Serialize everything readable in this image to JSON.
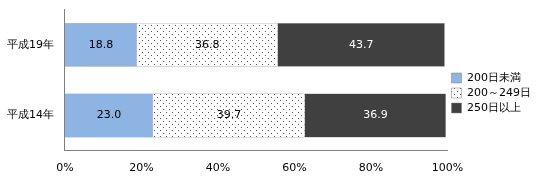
{
  "chart_data": {
    "type": "bar",
    "orientation": "horizontal",
    "stacked": true,
    "categories": [
      "平成19年",
      "平成14年"
    ],
    "series": [
      {
        "name": "200日未満",
        "color": "#8eb4e3",
        "values": [
          18.8,
          23.0
        ],
        "value_labels": [
          "18.8",
          "23.0"
        ]
      },
      {
        "name": "200～249日",
        "color": "#ffffff",
        "values": [
          36.8,
          39.7
        ],
        "value_labels": [
          "36.8",
          "39.7"
        ]
      },
      {
        "name": "250日以上",
        "color": "#404040",
        "values": [
          43.7,
          36.9
        ],
        "value_labels": [
          "43.7",
          "36.9"
        ]
      }
    ],
    "xlim": [
      0,
      100
    ],
    "xticks": [
      {
        "value": 0,
        "label": "0%"
      },
      {
        "value": 20,
        "label": "20%"
      },
      {
        "value": 40,
        "label": "40%"
      },
      {
        "value": 60,
        "label": "60%"
      },
      {
        "value": 80,
        "label": "80%"
      },
      {
        "value": 100,
        "label": "100%"
      }
    ],
    "grid": false,
    "legend": "right",
    "data_labels": true
  }
}
